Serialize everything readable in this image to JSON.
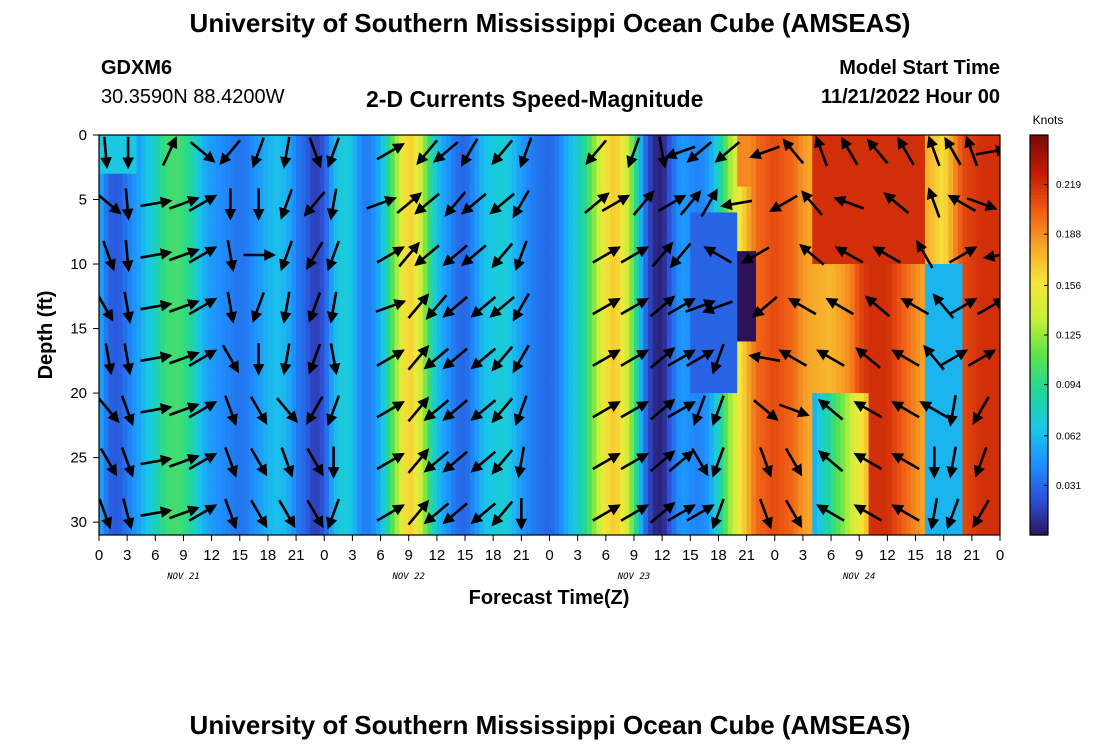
{
  "page": {
    "title_top": "University of Southern Mississippi Ocean Cube (AMSEAS)",
    "title_bottom": "University of Southern Mississippi Ocean Cube (AMSEAS)",
    "station_name": "GDXM6",
    "station_coords": "30.3590N  88.4200W",
    "variable_title": "2-D Currents Speed-Magnitude",
    "model_start_label": "Model Start Time",
    "model_start_value": "11/21/2022 Hour 00"
  },
  "chart_data": {
    "type": "heatmap",
    "xlabel": "Forecast Time(Z)",
    "ylabel": "Depth (ft)",
    "x_range_hours": [
      0,
      96
    ],
    "x_tick_step_hours": 3,
    "x_tick_labels": [
      "0",
      "3",
      "6",
      "9",
      "12",
      "15",
      "18",
      "21",
      "0",
      "3",
      "6",
      "9",
      "12",
      "15",
      "18",
      "21",
      "0",
      "3",
      "6",
      "9",
      "12",
      "15",
      "18",
      "21",
      "0",
      "3",
      "6",
      "9",
      "12",
      "15",
      "18",
      "21",
      "0"
    ],
    "day_labels": [
      {
        "text": "NOV 21",
        "hour": 9
      },
      {
        "text": "NOV 22",
        "hour": 33
      },
      {
        "text": "NOV 23",
        "hour": 57
      },
      {
        "text": "NOV 24",
        "hour": 81
      }
    ],
    "y_range": [
      0,
      31
    ],
    "y_inverted": true,
    "y_ticks": [
      0,
      5,
      10,
      15,
      20,
      25,
      30
    ],
    "colorbar": {
      "label": "Knots",
      "range": [
        0,
        0.25
      ],
      "ticks": [
        "0.219",
        "0.188",
        "0.156",
        "0.125",
        "0.094",
        "0.062",
        "0.031"
      ],
      "tick_values": [
        0.219,
        0.188,
        0.156,
        0.125,
        0.094,
        0.062,
        0.031
      ],
      "colors": [
        "#2b1259",
        "#2d4fd6",
        "#1e90ff",
        "#19c8e6",
        "#22d69a",
        "#5be34a",
        "#c8f03a",
        "#f6e63a",
        "#f7a428",
        "#ee5a14",
        "#c41a06",
        "#7a0b04"
      ]
    },
    "speed_profile": {
      "hours": [
        0,
        1,
        2,
        4,
        6,
        7,
        8,
        9,
        10,
        11,
        12,
        13,
        14,
        15,
        16,
        18,
        19,
        20,
        21,
        22,
        23,
        24,
        25,
        26,
        27,
        28,
        29,
        30,
        31,
        32,
        33,
        34,
        35,
        36,
        37,
        38,
        39,
        40,
        41,
        42,
        43,
        44,
        45,
        46,
        47,
        48,
        49,
        50,
        51,
        52,
        53,
        54,
        55,
        56,
        57,
        58,
        59,
        60,
        61,
        62,
        63,
        64,
        65,
        66,
        67,
        68,
        69,
        70,
        72,
        74,
        75,
        76,
        78,
        80,
        81,
        82,
        84,
        86,
        88,
        90,
        92,
        94,
        96
      ],
      "speed_knots": [
        0.06,
        0.03,
        0.025,
        0.05,
        0.08,
        0.1,
        0.105,
        0.1,
        0.085,
        0.06,
        0.05,
        0.045,
        0.04,
        0.035,
        0.04,
        0.06,
        0.065,
        0.06,
        0.04,
        0.03,
        0.015,
        0.025,
        0.06,
        0.075,
        0.065,
        0.04,
        0.04,
        0.06,
        0.1,
        0.14,
        0.17,
        0.15,
        0.11,
        0.065,
        0.05,
        0.035,
        0.03,
        0.045,
        0.065,
        0.07,
        0.075,
        0.065,
        0.05,
        0.04,
        0.035,
        0.03,
        0.04,
        0.06,
        0.075,
        0.1,
        0.13,
        0.16,
        0.17,
        0.15,
        0.11,
        0.04,
        0.01,
        0.005,
        0.03,
        0.05,
        0.045,
        0.04,
        0.05,
        0.08,
        0.12,
        0.15,
        0.175,
        0.2,
        0.21,
        0.2,
        0.185,
        0.18,
        0.175,
        0.19,
        0.21,
        0.22,
        0.22,
        0.2,
        0.18,
        0.16,
        0.21,
        0.22,
        0.22
      ]
    },
    "vector_rows_ft": [
      0,
      4,
      8,
      12,
      16,
      20,
      24,
      28
    ],
    "vectors_by_row": {
      "0": [
        [
          0.7,
          175
        ],
        [
          3.1,
          180
        ],
        [
          7.5,
          25
        ],
        [
          11,
          130
        ],
        [
          14,
          220
        ],
        [
          17,
          200
        ],
        [
          20,
          190
        ],
        [
          23,
          160
        ],
        [
          25,
          200
        ],
        [
          31,
          60
        ],
        [
          35,
          220
        ],
        [
          37,
          230
        ],
        [
          39.5,
          210
        ],
        [
          43,
          220
        ],
        [
          45.5,
          200
        ],
        [
          53,
          220
        ],
        [
          57,
          200
        ],
        [
          60,
          170
        ],
        [
          62,
          250
        ],
        [
          64,
          230
        ],
        [
          67,
          230
        ],
        [
          71,
          250
        ],
        [
          74,
          320
        ],
        [
          77,
          340
        ],
        [
          80,
          330
        ],
        [
          83,
          320
        ],
        [
          86,
          330
        ],
        [
          89,
          340
        ],
        [
          91,
          330
        ],
        [
          93,
          340
        ],
        [
          95,
          80
        ]
      ],
      "4": [
        [
          1,
          130
        ],
        [
          3,
          175
        ],
        [
          6,
          80
        ],
        [
          9,
          70
        ],
        [
          11,
          60
        ],
        [
          14,
          180
        ],
        [
          17,
          180
        ],
        [
          20,
          200
        ],
        [
          23,
          220
        ],
        [
          25,
          190
        ],
        [
          30,
          70
        ],
        [
          33,
          50
        ],
        [
          35,
          230
        ],
        [
          38,
          220
        ],
        [
          40,
          230
        ],
        [
          43,
          230
        ],
        [
          45,
          210
        ],
        [
          53,
          50
        ],
        [
          55,
          60
        ],
        [
          58,
          40
        ],
        [
          61,
          60
        ],
        [
          63,
          40
        ],
        [
          65,
          30
        ],
        [
          68,
          260
        ],
        [
          73,
          240
        ],
        [
          76,
          320
        ],
        [
          80,
          290
        ],
        [
          85,
          310
        ],
        [
          89,
          340
        ],
        [
          92,
          300
        ],
        [
          94,
          110
        ]
      ],
      "8": [
        [
          1,
          160
        ],
        [
          3,
          175
        ],
        [
          6,
          80
        ],
        [
          9,
          70
        ],
        [
          11,
          60
        ],
        [
          14,
          170
        ],
        [
          17,
          90
        ],
        [
          20,
          200
        ],
        [
          23,
          210
        ],
        [
          25,
          200
        ],
        [
          31,
          60
        ],
        [
          33,
          40
        ],
        [
          35,
          230
        ],
        [
          38,
          230
        ],
        [
          40,
          230
        ],
        [
          43,
          220
        ],
        [
          45,
          200
        ],
        [
          54,
          60
        ],
        [
          57,
          60
        ],
        [
          60,
          40
        ],
        [
          62,
          220
        ],
        [
          66,
          300
        ],
        [
          70,
          240
        ],
        [
          76,
          310
        ],
        [
          80,
          300
        ],
        [
          84,
          300
        ],
        [
          88,
          330
        ],
        [
          92,
          60
        ],
        [
          96,
          260
        ]
      ],
      "12": [
        [
          0.6,
          150
        ],
        [
          3,
          170
        ],
        [
          6,
          80
        ],
        [
          9,
          70
        ],
        [
          11,
          60
        ],
        [
          14,
          170
        ],
        [
          17,
          200
        ],
        [
          20,
          190
        ],
        [
          23,
          200
        ],
        [
          25,
          190
        ],
        [
          31,
          70
        ],
        [
          34,
          40
        ],
        [
          36,
          220
        ],
        [
          38,
          230
        ],
        [
          41,
          230
        ],
        [
          43,
          230
        ],
        [
          45,
          210
        ],
        [
          54,
          60
        ],
        [
          57,
          60
        ],
        [
          60,
          50
        ],
        [
          62,
          60
        ],
        [
          64,
          70
        ],
        [
          66,
          250
        ],
        [
          71,
          230
        ],
        [
          75,
          300
        ],
        [
          79,
          300
        ],
        [
          83,
          310
        ],
        [
          87,
          300
        ],
        [
          90,
          320
        ],
        [
          92,
          60
        ],
        [
          95,
          60
        ]
      ],
      "16": [
        [
          1,
          170
        ],
        [
          3,
          170
        ],
        [
          6,
          80
        ],
        [
          9,
          70
        ],
        [
          11,
          60
        ],
        [
          14,
          150
        ],
        [
          17,
          180
        ],
        [
          20,
          190
        ],
        [
          23,
          200
        ],
        [
          25,
          170
        ],
        [
          31,
          60
        ],
        [
          34,
          40
        ],
        [
          36,
          230
        ],
        [
          38,
          230
        ],
        [
          41,
          230
        ],
        [
          43,
          220
        ],
        [
          45,
          210
        ],
        [
          54,
          60
        ],
        [
          57,
          60
        ],
        [
          60,
          50
        ],
        [
          62,
          60
        ],
        [
          64,
          60
        ],
        [
          66,
          200
        ],
        [
          71,
          280
        ],
        [
          74,
          300
        ],
        [
          78,
          300
        ],
        [
          82,
          310
        ],
        [
          86,
          300
        ],
        [
          89,
          320
        ],
        [
          91,
          60
        ],
        [
          94,
          60
        ]
      ],
      "20": [
        [
          1,
          140
        ],
        [
          3,
          160
        ],
        [
          6,
          80
        ],
        [
          9,
          70
        ],
        [
          11,
          60
        ],
        [
          14,
          160
        ],
        [
          17,
          150
        ],
        [
          20,
          140
        ],
        [
          23,
          210
        ],
        [
          25,
          200
        ],
        [
          31,
          60
        ],
        [
          34,
          40
        ],
        [
          36,
          230
        ],
        [
          38,
          230
        ],
        [
          41,
          230
        ],
        [
          43,
          220
        ],
        [
          45,
          200
        ],
        [
          54,
          60
        ],
        [
          57,
          60
        ],
        [
          60,
          50
        ],
        [
          62,
          60
        ],
        [
          64,
          200
        ],
        [
          66,
          200
        ],
        [
          71,
          130
        ],
        [
          74,
          110
        ],
        [
          78,
          310
        ],
        [
          82,
          300
        ],
        [
          86,
          300
        ],
        [
          89,
          300
        ],
        [
          91,
          190
        ],
        [
          94,
          210
        ]
      ],
      "24": [
        [
          1,
          150
        ],
        [
          3,
          160
        ],
        [
          6,
          80
        ],
        [
          9,
          70
        ],
        [
          11,
          60
        ],
        [
          14,
          160
        ],
        [
          17,
          150
        ],
        [
          20,
          160
        ],
        [
          23,
          150
        ],
        [
          25,
          180
        ],
        [
          31,
          60
        ],
        [
          34,
          40
        ],
        [
          36,
          230
        ],
        [
          38,
          230
        ],
        [
          41,
          230
        ],
        [
          43,
          220
        ],
        [
          45,
          190
        ],
        [
          54,
          60
        ],
        [
          57,
          60
        ],
        [
          60,
          50
        ],
        [
          62,
          50
        ],
        [
          64,
          150
        ],
        [
          66,
          200
        ],
        [
          71,
          160
        ],
        [
          74,
          150
        ],
        [
          78,
          310
        ],
        [
          82,
          300
        ],
        [
          86,
          300
        ],
        [
          89,
          180
        ],
        [
          91,
          190
        ],
        [
          94,
          200
        ]
      ],
      "28": [
        [
          0.6,
          160
        ],
        [
          3,
          165
        ],
        [
          6,
          80
        ],
        [
          9,
          70
        ],
        [
          11,
          60
        ],
        [
          14,
          160
        ],
        [
          17,
          150
        ],
        [
          20,
          150
        ],
        [
          23,
          150
        ],
        [
          25,
          200
        ],
        [
          31,
          60
        ],
        [
          34,
          40
        ],
        [
          36,
          230
        ],
        [
          38,
          230
        ],
        [
          41,
          230
        ],
        [
          43,
          220
        ],
        [
          45,
          180
        ],
        [
          54,
          60
        ],
        [
          57,
          60
        ],
        [
          60,
          50
        ],
        [
          62,
          60
        ],
        [
          64,
          60
        ],
        [
          66,
          200
        ],
        [
          71,
          160
        ],
        [
          74,
          150
        ],
        [
          78,
          300
        ],
        [
          82,
          300
        ],
        [
          86,
          300
        ],
        [
          89,
          190
        ],
        [
          91,
          200
        ],
        [
          94,
          210
        ]
      ]
    }
  }
}
